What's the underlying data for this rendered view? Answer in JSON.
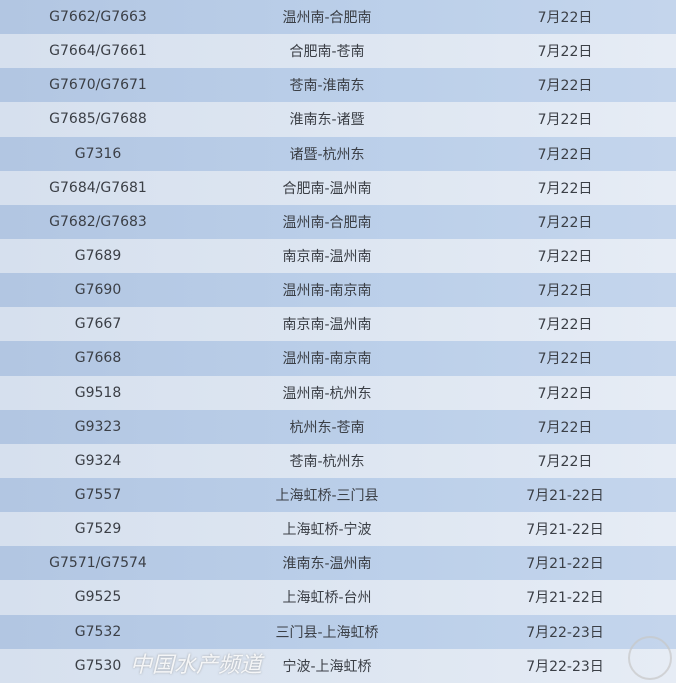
{
  "rows": [
    {
      "train": "G7662/G7663",
      "route": "温州南-合肥南",
      "date": "7月22日"
    },
    {
      "train": "G7664/G7661",
      "route": "合肥南-苍南",
      "date": "7月22日"
    },
    {
      "train": "G7670/G7671",
      "route": "苍南-淮南东",
      "date": "7月22日"
    },
    {
      "train": "G7685/G7688",
      "route": "淮南东-诸暨",
      "date": "7月22日"
    },
    {
      "train": "G7316",
      "route": "诸暨-杭州东",
      "date": "7月22日"
    },
    {
      "train": "G7684/G7681",
      "route": "合肥南-温州南",
      "date": "7月22日"
    },
    {
      "train": "G7682/G7683",
      "route": "温州南-合肥南",
      "date": "7月22日"
    },
    {
      "train": "G7689",
      "route": "南京南-温州南",
      "date": "7月22日"
    },
    {
      "train": "G7690",
      "route": "温州南-南京南",
      "date": "7月22日"
    },
    {
      "train": "G7667",
      "route": "南京南-温州南",
      "date": "7月22日"
    },
    {
      "train": "G7668",
      "route": "温州南-南京南",
      "date": "7月22日"
    },
    {
      "train": "G9518",
      "route": "温州南-杭州东",
      "date": "7月22日"
    },
    {
      "train": "G9323",
      "route": "杭州东-苍南",
      "date": "7月22日"
    },
    {
      "train": "G9324",
      "route": "苍南-杭州东",
      "date": "7月22日"
    },
    {
      "train": "G7557",
      "route": "上海虹桥-三门县",
      "date": "7月21-22日"
    },
    {
      "train": "G7529",
      "route": "上海虹桥-宁波",
      "date": "7月21-22日"
    },
    {
      "train": "G7571/G7574",
      "route": "淮南东-温州南",
      "date": "7月21-22日"
    },
    {
      "train": "G9525",
      "route": "上海虹桥-台州",
      "date": "7月21-22日"
    },
    {
      "train": "G7532",
      "route": "三门县-上海虹桥",
      "date": "7月22-23日"
    },
    {
      "train": "G7530",
      "route": "宁波-上海虹桥",
      "date": "7月22-23日"
    }
  ],
  "watermark": "中国水产频道",
  "colors": {
    "row_dark": "#b8cce4",
    "row_light": "#dce6f1",
    "text": "#3b3f46"
  }
}
